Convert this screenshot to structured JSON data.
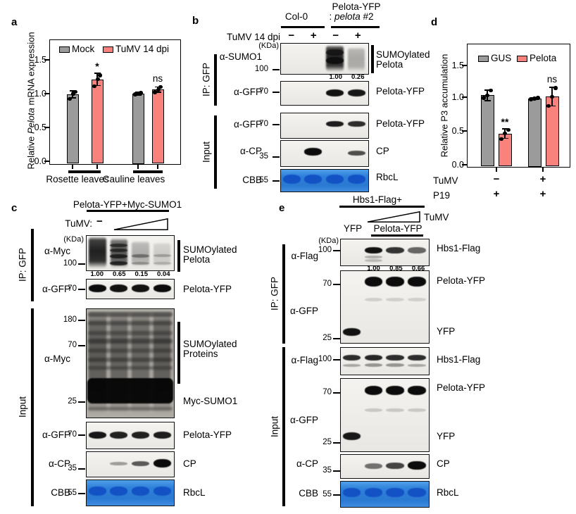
{
  "colors": {
    "gray_bar": "#9b9b9b",
    "salmon_bar": "#f9837c",
    "cbb_bg": "#2e80d9",
    "cbb_band": "#1352c5"
  },
  "panel_a": {
    "label": "a",
    "chart_data": {
      "type": "bar",
      "ylabel": "Relative Pelota mRNA expression",
      "ylabel_parts": {
        "pre": "Relative ",
        "italic": "Pelota",
        "post": " mRNA expression"
      },
      "yticks": [
        "0.0",
        "0.5",
        "1.0",
        "1.5"
      ],
      "ylim": [
        0,
        1.8
      ],
      "grid": false,
      "legend_position": "top-inside",
      "legend": [
        "Mock",
        "TuMV 14 dpi"
      ],
      "categories": [
        "Rosette leaves",
        "Cauline leaves"
      ],
      "series": [
        {
          "name": "Mock",
          "values": [
            0.99,
            1.0
          ],
          "errors": [
            0.05,
            0.02
          ],
          "dots": [
            [
              0.92,
              1.0,
              1.03
            ],
            [
              0.99,
              1.0,
              1.01
            ]
          ]
        },
        {
          "name": "TuMV 14 dpi",
          "values": [
            1.21,
            1.06
          ],
          "errors": [
            0.09,
            0.04
          ],
          "dots": [
            [
              1.11,
              1.21,
              1.27
            ],
            [
              1.02,
              1.06,
              1.1
            ]
          ]
        }
      ],
      "significance": [
        "*",
        "ns"
      ]
    }
  },
  "panel_b": {
    "label": "b",
    "header": {
      "col0": "Col-0",
      "line1": "Pelota-YFP",
      "line2_prefix": ": ",
      "line2_italic": "pelota",
      "line2_suffix": " #2",
      "treatment": "TuMV 14 dpi",
      "signs": [
        "−",
        "+",
        "−",
        "+"
      ],
      "kda": "(KDa)"
    },
    "ip_group": "IP: GFP",
    "input_group": "Input",
    "rows": [
      {
        "antibody": "α-SUMO1",
        "marker": "100",
        "right_line1": "SUMOylated",
        "right_line2": "Pelota",
        "quant": [
          "1.00",
          "0.26"
        ]
      },
      {
        "antibody": "α-GFP",
        "marker": "70",
        "right": "Pelota-YFP"
      },
      {
        "antibody": "α-GFP",
        "marker": "70",
        "right": "Pelota-YFP"
      },
      {
        "antibody": "α-CP",
        "marker": "35",
        "right": "CP"
      },
      {
        "antibody": "CBB",
        "marker": "55",
        "right": "RbcL"
      }
    ],
    "blots": [
      {
        "smears": [
          [
            2,
            0.04,
            0.97,
            0.97
          ],
          [
            3,
            0.12,
            0.97,
            0.33
          ]
        ],
        "bands": [
          [
            2,
            0.3,
            0.75,
            9
          ],
          [
            2,
            0.58,
            0.9,
            10
          ]
        ]
      },
      {
        "bands": [
          [
            2,
            0.5,
            0.97,
            10
          ],
          [
            3,
            0.5,
            0.95,
            10
          ]
        ]
      },
      {
        "bands": [
          [
            2,
            0.46,
            0.92,
            8
          ],
          [
            3,
            0.46,
            0.85,
            8
          ]
        ]
      },
      {
        "bands": [
          [
            1,
            0.45,
            1,
            11
          ],
          [
            3,
            0.5,
            0.7,
            7
          ]
        ]
      },
      {
        "cbb": true
      }
    ]
  },
  "panel_c": {
    "label": "c",
    "header": {
      "construct": "Pelota-YFP+Myc-SUMO1",
      "treatment": "TuMV:",
      "minus": "−",
      "kda": "(KDa)"
    },
    "ip_group": "IP: GFP",
    "input_group": "Input",
    "quant": [
      "1.00",
      "0.65",
      "0.15",
      "0.04"
    ],
    "rows": [
      {
        "antibody": "α-Myc",
        "marker": "100",
        "right_line1": "SUMOylated",
        "right_line2": "Pelota"
      },
      {
        "antibody": "α-GFP",
        "marker": "70",
        "right": "Pelota-YFP"
      },
      {
        "antibody": "α-Myc",
        "markers": [
          "180",
          "70",
          "25"
        ],
        "right_line1": "SUMOylated",
        "right_line2": "Proteins",
        "right2": "Myc-SUMO1"
      },
      {
        "antibody": "α-GFP",
        "marker": "70",
        "right": "Pelota-YFP"
      },
      {
        "antibody": "α-CP",
        "marker": "35",
        "right": "CP"
      },
      {
        "antibody": "CBB",
        "marker": "55",
        "right": "RbcL"
      }
    ],
    "blots": [
      {
        "smears": [
          [
            0,
            0.02,
            0.98,
            1
          ],
          [
            1,
            0.06,
            0.96,
            0.72
          ],
          [
            2,
            0.15,
            0.92,
            0.3
          ],
          [
            3,
            0.18,
            0.92,
            0.16
          ]
        ],
        "bands": [
          [
            1,
            0.28,
            0.65,
            5
          ],
          [
            1,
            0.44,
            0.65,
            5
          ],
          [
            1,
            0.62,
            0.75,
            6
          ],
          [
            1,
            0.82,
            0.8,
            6
          ],
          [
            2,
            0.6,
            0.4,
            5
          ],
          [
            3,
            0.6,
            0.25,
            4
          ],
          [
            2,
            0.82,
            0.3,
            4
          ],
          [
            3,
            0.82,
            0.2,
            4
          ]
        ]
      },
      {
        "bands": [
          [
            0,
            0.5,
            1,
            11
          ],
          [
            1,
            0.5,
            0.97,
            11
          ],
          [
            2,
            0.5,
            0.97,
            11
          ],
          [
            3,
            0.5,
            1,
            11
          ]
        ]
      },
      {
        "texture": true,
        "smears": [
          [
            0,
            0.02,
            0.98,
            0.5
          ],
          [
            1,
            0.02,
            0.98,
            0.45
          ],
          [
            2,
            0.02,
            0.98,
            0.42
          ],
          [
            3,
            0.02,
            0.98,
            0.5
          ]
        ],
        "stripes": [
          [
            0.05,
            0.5,
            7
          ],
          [
            0.13,
            0.4,
            6
          ],
          [
            0.22,
            0.35,
            6
          ],
          [
            0.3,
            0.45,
            7
          ],
          [
            0.39,
            0.35,
            6
          ],
          [
            0.47,
            0.4,
            6
          ],
          [
            0.55,
            0.35,
            5
          ],
          [
            0.93,
            0.35,
            5
          ]
        ],
        "mega": [
          0.64,
          0.88
        ]
      },
      {
        "bands": [
          [
            0,
            0.5,
            0.95,
            10
          ],
          [
            1,
            0.5,
            0.9,
            10
          ],
          [
            2,
            0.5,
            0.9,
            10
          ],
          [
            3,
            0.5,
            0.92,
            10
          ]
        ]
      },
      {
        "bands": [
          [
            1,
            0.5,
            0.35,
            5
          ],
          [
            2,
            0.5,
            0.65,
            7
          ],
          [
            3,
            0.47,
            1,
            12
          ]
        ]
      },
      {
        "cbb": true
      }
    ]
  },
  "panel_d": {
    "label": "d",
    "chart_data": {
      "type": "bar",
      "ylabel": "Relative P3 accumulation",
      "yticks": [
        "0.0",
        "0.5",
        "1.0",
        "1.5"
      ],
      "ylim": [
        0,
        1.8
      ],
      "grid": false,
      "legend_position": "top-inside",
      "legend": [
        "GUS",
        "Pelota"
      ],
      "categories": [
        "TuMV − / P19 +",
        "TuMV + / P19 +"
      ],
      "series": [
        {
          "name": "GUS",
          "values": [
            1.05,
            1.0
          ],
          "errors": [
            0.08,
            0.015
          ],
          "dots": [
            [
              1.01,
              1.05,
              1.12
            ],
            [
              0.99,
              1.0,
              1.01
            ]
          ]
        },
        {
          "name": "Pelota",
          "values": [
            0.47,
            1.03
          ],
          "errors": [
            0.07,
            0.14
          ],
          "dots": [
            [
              0.39,
              0.47,
              0.53
            ],
            [
              0.89,
              1.03,
              1.16
            ]
          ]
        }
      ],
      "significance": [
        "**",
        "ns"
      ],
      "condition_rows": [
        {
          "label": "TuMV",
          "signs": [
            "−",
            "+"
          ]
        },
        {
          "label": "P19",
          "signs": [
            "+",
            "+"
          ]
        }
      ]
    }
  },
  "panel_e": {
    "label": "e",
    "header": {
      "construct": "Hbs1-Flag+",
      "gradient_label": "TuMV",
      "lane1": "YFP",
      "lanes234": "Pelota-YFP",
      "kda": "(KDa)"
    },
    "ip_group": "IP: GFP",
    "input_group": "Input",
    "quant": [
      "1.00",
      "0.85",
      "0.66"
    ],
    "rows": [
      {
        "antibody": "α-Flag",
        "marker": "100",
        "right": "Hbs1-Flag"
      },
      {
        "antibody": "α-GFP",
        "markers": [
          "70",
          "25"
        ],
        "right_top": "Pelota-YFP",
        "right_bottom": "YFP"
      },
      {
        "antibody": "α-Flag",
        "marker": "100",
        "right": "Hbs1-Flag"
      },
      {
        "antibody": "α-GFP",
        "markers": [
          "70",
          "25"
        ],
        "right_top": "Pelota-YFP",
        "right_bottom": "YFP"
      },
      {
        "antibody": "α-CP",
        "marker": "35",
        "right": "CP"
      },
      {
        "antibody": "CBB",
        "marker": "55",
        "right": "RbcL"
      }
    ],
    "blots": [
      {
        "bands": [
          [
            1,
            0.44,
            0.97,
            9
          ],
          [
            2,
            0.44,
            0.82,
            9
          ],
          [
            3,
            0.44,
            0.6,
            9
          ],
          [
            1,
            0.72,
            0.28,
            4
          ],
          [
            1,
            0.86,
            0.22,
            4
          ]
        ]
      },
      {
        "bands": [
          [
            1,
            0.15,
            1,
            14
          ],
          [
            2,
            0.15,
            1,
            14
          ],
          [
            3,
            0.15,
            1,
            14
          ],
          [
            1,
            0.4,
            0.13,
            5
          ],
          [
            2,
            0.4,
            0.13,
            5
          ],
          [
            3,
            0.4,
            0.13,
            5
          ],
          [
            0,
            0.86,
            0.97,
            11
          ]
        ]
      },
      {
        "bands": [
          [
            0,
            0.38,
            0.85,
            8
          ],
          [
            1,
            0.38,
            0.88,
            8
          ],
          [
            2,
            0.38,
            0.85,
            8
          ],
          [
            3,
            0.38,
            0.85,
            8
          ],
          [
            0,
            0.68,
            0.3,
            4
          ],
          [
            1,
            0.68,
            0.38,
            5
          ],
          [
            2,
            0.68,
            0.38,
            5
          ],
          [
            3,
            0.68,
            0.3,
            4
          ]
        ]
      },
      {
        "bands": [
          [
            1,
            0.16,
            1,
            13
          ],
          [
            2,
            0.16,
            1,
            13
          ],
          [
            3,
            0.16,
            1,
            13
          ],
          [
            1,
            0.44,
            0.16,
            5
          ],
          [
            2,
            0.44,
            0.16,
            5
          ],
          [
            3,
            0.44,
            0.16,
            5
          ],
          [
            0,
            0.8,
            0.95,
            11
          ]
        ]
      },
      {
        "bands": [
          [
            1,
            0.5,
            0.55,
            8
          ],
          [
            2,
            0.5,
            0.75,
            9
          ],
          [
            3,
            0.47,
            1,
            12
          ]
        ]
      },
      {
        "cbb": true
      }
    ]
  }
}
